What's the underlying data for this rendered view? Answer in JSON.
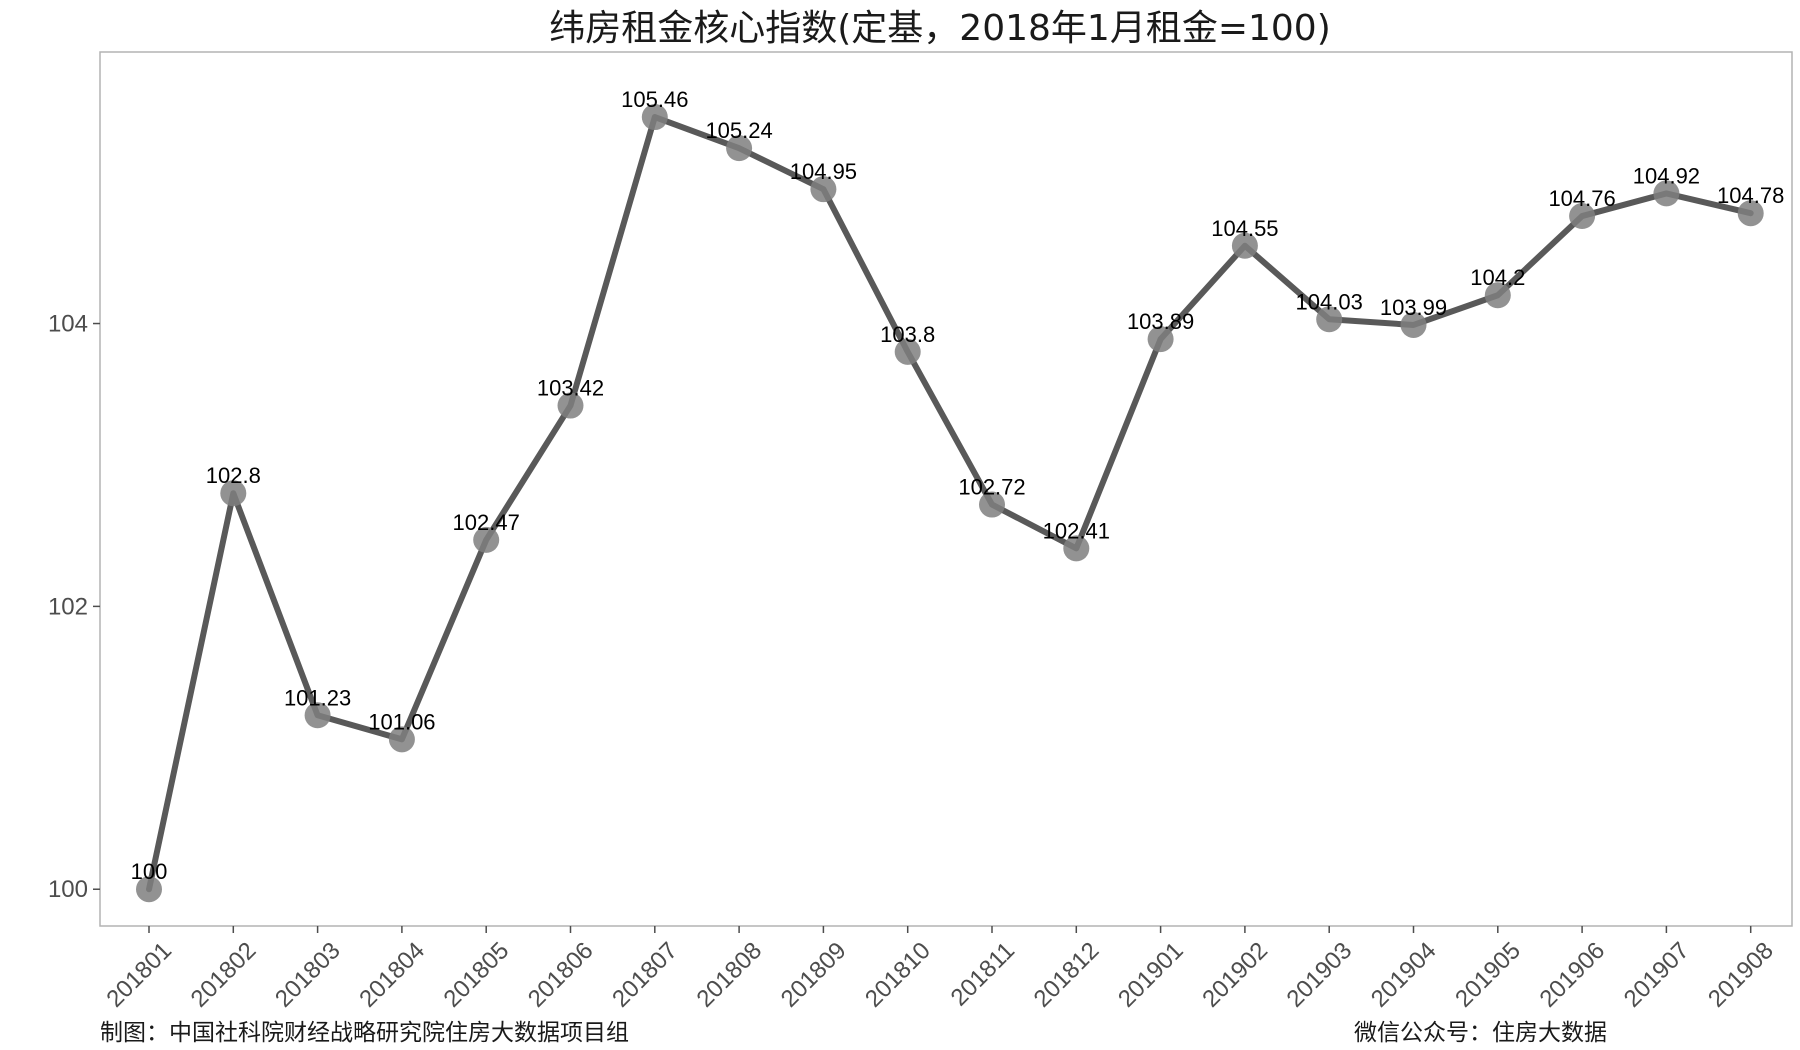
{
  "chart_data": {
    "type": "line",
    "title": "纬房租金核心指数(定基，2018年1月租金=100)",
    "xlabel": "",
    "ylabel": "",
    "categories": [
      "201801",
      "201802",
      "201803",
      "201804",
      "201805",
      "201806",
      "201807",
      "201808",
      "201809",
      "201810",
      "201811",
      "201812",
      "201901",
      "201902",
      "201903",
      "201904",
      "201905",
      "201906",
      "201907",
      "201908"
    ],
    "series": [
      {
        "values": [
          100,
          102.8,
          101.23,
          101.06,
          102.47,
          103.42,
          105.46,
          105.24,
          104.95,
          103.8,
          102.72,
          102.41,
          103.89,
          104.55,
          104.03,
          103.99,
          104.2,
          104.76,
          104.92,
          104.78
        ],
        "data_labels": [
          "100",
          "102.8",
          "101.23",
          "101.06",
          "102.47",
          "103.42",
          "105.46",
          "105.24",
          "104.95",
          "103.8",
          "102.72",
          "102.41",
          "103.89",
          "104.55",
          "104.03",
          "103.99",
          "104.2",
          "104.76",
          "104.92",
          "104.78"
        ]
      }
    ],
    "y_ticks": [
      100,
      102,
      104
    ],
    "y_tick_labels": [
      "100",
      "102",
      "104"
    ],
    "ylim": [
      99.74,
      105.92
    ],
    "grid": false,
    "legend": "none",
    "colors": {
      "line": "#595959",
      "point": "#7f7f7f",
      "panel_border": "#b3b3b3",
      "axis_tick": "#4d4d4d"
    }
  },
  "footer": {
    "left": "制图：中国社科院财经战略研究院住房大数据项目组",
    "right": "微信公众号：住房大数据"
  }
}
